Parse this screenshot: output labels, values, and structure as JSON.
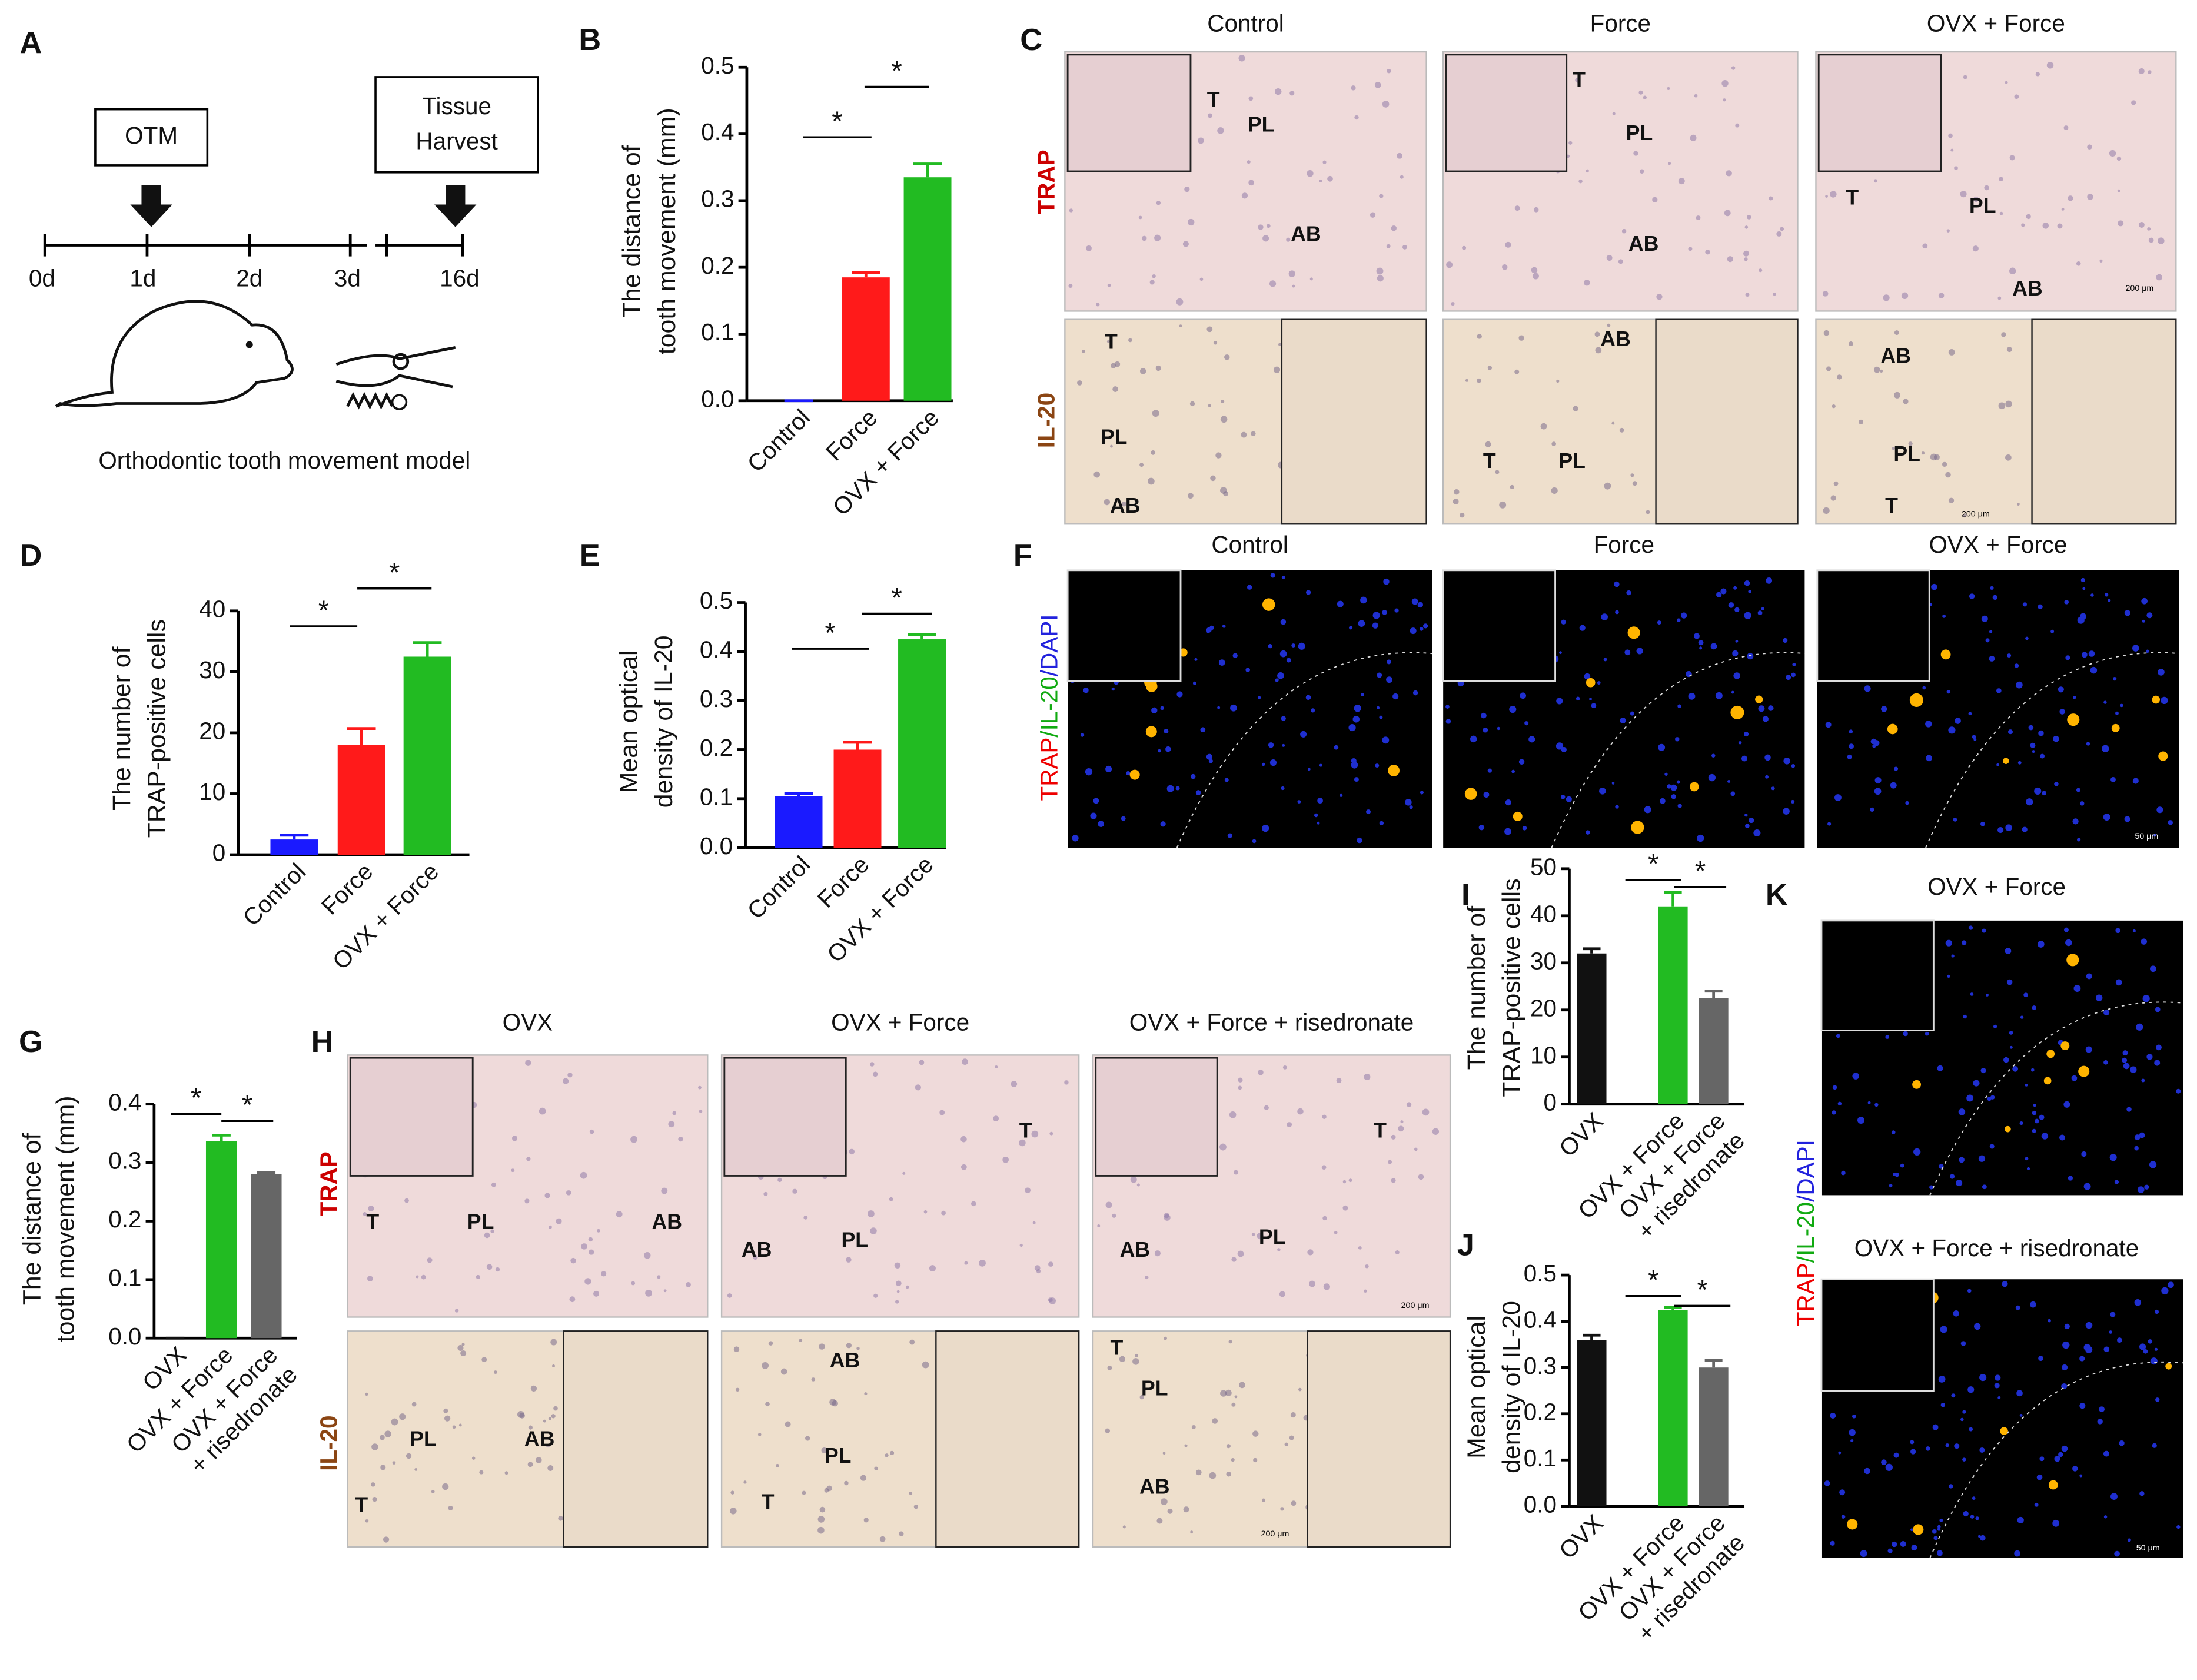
{
  "figure": {
    "panel_letters": [
      "A",
      "B",
      "C",
      "D",
      "E",
      "F",
      "G",
      "H",
      "I",
      "J",
      "K"
    ],
    "timeline": {
      "start_event": "OTM",
      "end_event": [
        "Tissue",
        "Harvest"
      ],
      "days": [
        "0d",
        "1d",
        "2d",
        "3d",
        "16d"
      ],
      "caption": "Orthodontic tooth movement model"
    }
  },
  "micrographs": {
    "C": {
      "columns": [
        "Control",
        "Force",
        "OVX + Force"
      ],
      "rows": [
        "TRAP",
        "IL-20"
      ],
      "labels": [
        [
          [
            "T",
            "PL",
            "AB"
          ],
          [
            "T",
            "PL",
            "AB"
          ],
          [
            "T",
            "PL",
            "AB",
            "200 μm"
          ]
        ],
        [
          [
            "T",
            "PL",
            "AB"
          ],
          [
            "AB",
            "T",
            "PL"
          ],
          [
            "AB",
            "PL",
            "T",
            "200 μm"
          ]
        ]
      ]
    },
    "F": {
      "columns": [
        "Control",
        "Force",
        "OVX + Force"
      ],
      "stain": [
        "TRAP",
        "/IL-20",
        "/DAPI"
      ],
      "scale": "50 μm"
    },
    "H": {
      "columns": [
        "OVX",
        "OVX + Force",
        "OVX + Force + risedronate"
      ],
      "rows": [
        "TRAP",
        "IL-20"
      ],
      "labels": [
        [
          [
            "T",
            "PL",
            "AB"
          ],
          [
            "AB",
            "PL",
            "T"
          ],
          [
            "AB",
            "PL",
            "T",
            "200 μm"
          ]
        ],
        [
          [
            "PL",
            "AB",
            "T"
          ],
          [
            "AB",
            "PL",
            "T"
          ],
          [
            "T",
            "PL",
            "AB",
            "200 μm"
          ]
        ]
      ]
    },
    "K": {
      "columns": [
        "OVX + Force",
        "OVX + Force + risedronate"
      ],
      "stain": [
        "TRAP",
        "/IL-20",
        "/DAPI"
      ],
      "scale": "50 μm"
    }
  },
  "chart_data": [
    {
      "type": "bar",
      "panel": "B",
      "ylabel": [
        "The distance of",
        "tooth movement (mm)"
      ],
      "categories": [
        "Control",
        "Force",
        "OVX + Force"
      ],
      "values": [
        0,
        0.185,
        0.335
      ],
      "errors": [
        0,
        0.007,
        0.02
      ],
      "colors": [
        "#1a1aff",
        "#ff1a1a",
        "#22bb22"
      ],
      "ylim": [
        0,
        0.5
      ],
      "yticks": [
        {
          "value": 0,
          "label": "0.0"
        },
        0.1,
        0.2,
        0.3,
        0.4,
        0.5
      ],
      "annotations": [
        "*",
        "*"
      ]
    },
    {
      "type": "bar",
      "panel": "D",
      "ylabel": [
        "The number of",
        "TRAP-positive cells"
      ],
      "categories": [
        "Control",
        "Force",
        "OVX + Force"
      ],
      "values": [
        2.5,
        18,
        32.5
      ],
      "errors": [
        0.7,
        2.7,
        2.3
      ],
      "colors": [
        "#1a1aff",
        "#ff1a1a",
        "#22bb22"
      ],
      "ylim": [
        0,
        40
      ],
      "yticks": [
        0,
        10,
        20,
        30,
        40
      ],
      "annotations": [
        "*",
        "*"
      ]
    },
    {
      "type": "bar",
      "panel": "E",
      "ylabel": [
        "Mean optical",
        "density of IL-20"
      ],
      "categories": [
        "Control",
        "Force",
        "OVX + Force"
      ],
      "values": [
        0.105,
        0.2,
        0.425
      ],
      "errors": [
        0.006,
        0.015,
        0.01
      ],
      "colors": [
        "#1a1aff",
        "#ff1a1a",
        "#22bb22"
      ],
      "ylim": [
        0,
        0.5
      ],
      "yticks": [
        {
          "value": 0,
          "label": "0.0"
        },
        0.1,
        0.2,
        0.3,
        0.4,
        0.5
      ],
      "annotations": [
        "*",
        "*"
      ]
    },
    {
      "type": "bar",
      "panel": "G",
      "ylabel": [
        "The distance of",
        "tooth movement (mm)"
      ],
      "categories": [
        "OVX",
        "OVX + Force",
        [
          "OVX + Force",
          "+ risedronate"
        ]
      ],
      "values": [
        0,
        0.337,
        0.28
      ],
      "errors": [
        0,
        0.01,
        0.003
      ],
      "colors": [
        "#111111",
        "#22bb22",
        "#666666"
      ],
      "ylim": [
        0,
        0.4
      ],
      "yticks": [
        {
          "value": 0,
          "label": "0.0"
        },
        0.1,
        0.2,
        0.3,
        0.4
      ],
      "annotations": [
        "*",
        "*"
      ]
    },
    {
      "type": "bar",
      "panel": "I",
      "ylabel": [
        "The number of",
        "TRAP-positive cells"
      ],
      "categories": [
        "OVX",
        "OVX + Force",
        [
          "OVX + Force",
          "+ risedronate"
        ]
      ],
      "values": [
        32,
        42,
        22.5
      ],
      "errors": [
        1,
        3,
        1.5
      ],
      "colors": [
        "#111111",
        "#22bb22",
        "#666666"
      ],
      "ylim": [
        0,
        50
      ],
      "yticks": [
        0,
        10,
        20,
        30,
        40,
        50
      ],
      "annotations": [
        "*",
        "*"
      ]
    },
    {
      "type": "bar",
      "panel": "J",
      "ylabel": [
        "Mean optical",
        "density of IL-20"
      ],
      "categories": [
        "OVX",
        "OVX + Force",
        [
          "OVX + Force",
          "+ risedronate"
        ]
      ],
      "values": [
        0.36,
        0.425,
        0.3
      ],
      "errors": [
        0.01,
        0.005,
        0.015
      ],
      "colors": [
        "#111111",
        "#22bb22",
        "#666666"
      ],
      "ylim": [
        0,
        0.5
      ],
      "yticks": [
        {
          "value": 0,
          "label": "0.0"
        },
        0.1,
        0.2,
        0.3,
        0.4,
        0.5
      ],
      "annotations": [
        "*",
        "*"
      ]
    }
  ]
}
